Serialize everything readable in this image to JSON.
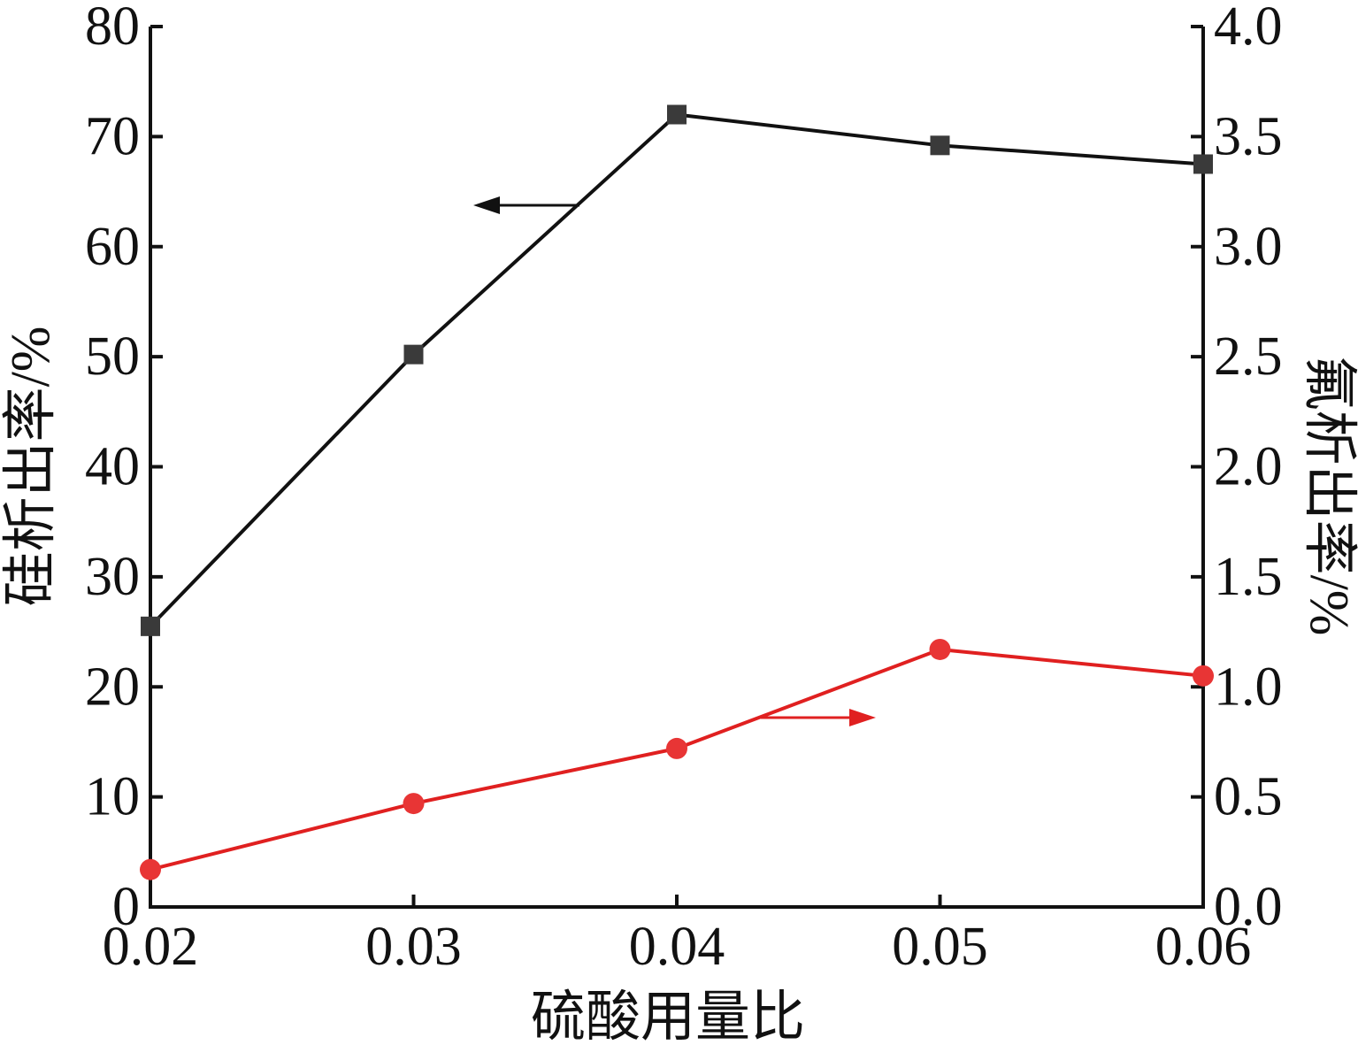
{
  "chart_data": {
    "type": "line",
    "xlabel": "硫酸用量比",
    "ylabel_left": "硅析出率/%",
    "ylabel_right": "氟析出率/%",
    "x_ticks": [
      "0.02",
      "0.03",
      "0.04",
      "0.05",
      "0.06"
    ],
    "y_left_ticks": [
      "0",
      "10",
      "20",
      "30",
      "40",
      "50",
      "60",
      "70",
      "80"
    ],
    "y_right_ticks": [
      "0.0",
      "0.5",
      "1.0",
      "1.5",
      "2.0",
      "2.5",
      "3.0",
      "3.5",
      "4.0"
    ],
    "xlim": [
      0.02,
      0.06
    ],
    "ylim_left": [
      0,
      80
    ],
    "ylim_right": [
      0,
      4.0
    ],
    "x": [
      0.02,
      0.03,
      0.04,
      0.05,
      0.06
    ],
    "series": [
      {
        "axis": "left",
        "marker": "square",
        "color": "#111111",
        "marker_color": "#3a3a3a",
        "values": [
          25.5,
          50.2,
          72.0,
          69.2,
          67.5
        ],
        "arrow_direction": "left"
      },
      {
        "axis": "right",
        "marker": "circle",
        "color": "#e02020",
        "marker_color": "#e83535",
        "values": [
          0.17,
          0.47,
          0.72,
          1.17,
          1.05
        ],
        "arrow_direction": "right"
      }
    ],
    "grid": false,
    "legend": "none"
  }
}
